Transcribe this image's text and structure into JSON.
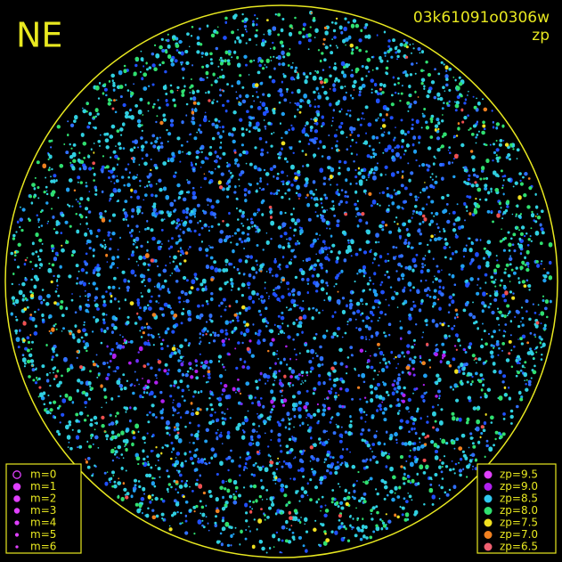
{
  "title": "NE",
  "frame_id": "03k61091o0306w",
  "mode": "zp",
  "magnitude_legend": [
    "m=0",
    "m=1",
    "m=2",
    "m=3",
    "m=4",
    "m=5",
    "m=6"
  ],
  "zp_legend": [
    {
      "label": "zp=9.5",
      "color": "#e040ff"
    },
    {
      "label": "zp=9.0",
      "color": "#b020f0"
    },
    {
      "label": "zp=8.5",
      "color": "#30c8f0"
    },
    {
      "label": "zp=8.0",
      "color": "#30e070"
    },
    {
      "label": "zp=7.5",
      "color": "#f0e020"
    },
    {
      "label": "zp=7.0",
      "color": "#f08020"
    },
    {
      "label": "zp=6.5",
      "color": "#f06070"
    }
  ]
}
